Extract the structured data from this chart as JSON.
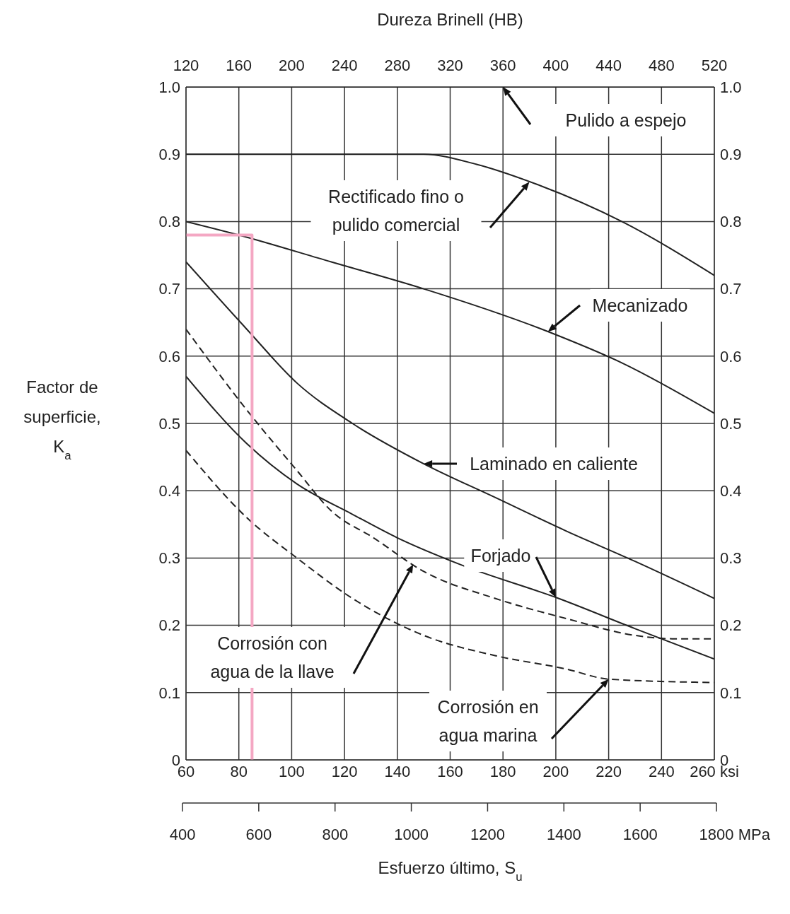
{
  "chart_data": {
    "type": "line",
    "x2label": "Dureza Brinell (HB)",
    "xlabel": "Esfuerzo último, S$_{u}$",
    "ylabel": "Factor de superficie, K$_{a}$",
    "xlim": [
      60,
      260
    ],
    "xticks": [
      60,
      80,
      100,
      120,
      140,
      160,
      180,
      200,
      220,
      240,
      {
        "value": 260,
        "label": "260 ksi"
      }
    ],
    "x2lim": [
      120,
      520
    ],
    "x2ticks": [
      120,
      160,
      200,
      240,
      280,
      320,
      360,
      400,
      440,
      480,
      520
    ],
    "annotations": [
      "400",
      "600",
      "800",
      "1000",
      "1200",
      "1400",
      "1600",
      "1800 MPa"
    ],
    "ylim": [
      0,
      1.0
    ],
    "yticks": [
      {
        "value": 0,
        "label": "0"
      },
      0.1,
      0.2,
      0.3,
      0.4,
      0.5,
      0.6,
      0.7,
      0.8,
      0.9,
      {
        "value": 1.0,
        "label": "1.0"
      }
    ],
    "y2lim": [
      0,
      1.0
    ],
    "y2ticks": [
      {
        "value": 0,
        "label": "0"
      },
      0.1,
      0.2,
      0.3,
      0.4,
      0.5,
      0.6,
      0.7,
      0.8,
      0.9,
      {
        "value": 1.0,
        "label": "1.0"
      }
    ],
    "grid": true,
    "legend": false,
    "marker": "none",
    "series": [
      {
        "name": "Pulido a espejo",
        "color": "#222222",
        "x": [
          60,
          260
        ],
        "values": [
          1.0,
          1.0
        ]
      },
      {
        "name": "Rectificado fino o pulido comercial",
        "color": "#222222",
        "x": [
          60,
          150,
          170,
          193,
          225,
          260
        ],
        "values": [
          0.9,
          0.9,
          0.885,
          0.855,
          0.8,
          0.72
        ]
      },
      {
        "name": "Mecanizado",
        "color": "#222222",
        "x": [
          60,
          80,
          115,
          150,
          198,
          225,
          260
        ],
        "values": [
          0.8,
          0.78,
          0.74,
          0.7,
          0.635,
          0.59,
          0.515
        ]
      },
      {
        "name": "Laminado en caliente",
        "color": "#222222",
        "x": [
          60,
          83,
          102,
          123,
          150,
          177,
          204,
          230,
          260
        ],
        "values": [
          0.74,
          0.64,
          0.56,
          0.5,
          0.44,
          0.39,
          0.34,
          0.295,
          0.24
        ]
      },
      {
        "name": "Forjado",
        "color": "#222222",
        "x": [
          60,
          83,
          102,
          123,
          140,
          164,
          201,
          230,
          260
        ],
        "values": [
          0.57,
          0.47,
          0.41,
          0.365,
          0.33,
          0.29,
          0.24,
          0.195,
          0.15
        ]
      },
      {
        "name": "Corrosión con agua de la llave",
        "color": "#222222",
        "line_style": "dashed",
        "x": [
          60,
          83,
          102,
          115,
          131,
          150,
          177,
          204,
          230,
          244,
          260
        ],
        "values": [
          0.64,
          0.52,
          0.43,
          0.37,
          0.33,
          0.28,
          0.24,
          0.21,
          0.185,
          0.18,
          0.18
        ]
      },
      {
        "name": "Corrosión en agua marina",
        "color": "#222222",
        "line_style": "dashed",
        "x": [
          60,
          83,
          102,
          123,
          150,
          177,
          204,
          220,
          260
        ],
        "values": [
          0.46,
          0.36,
          0.3,
          0.24,
          0.185,
          0.155,
          0.135,
          0.12,
          0.115
        ]
      },
      {
        "color": "#f4a7c3",
        "x": [
          60,
          85,
          85
        ],
        "values": [
          0.78,
          0.78,
          0
        ]
      }
    ]
  }
}
